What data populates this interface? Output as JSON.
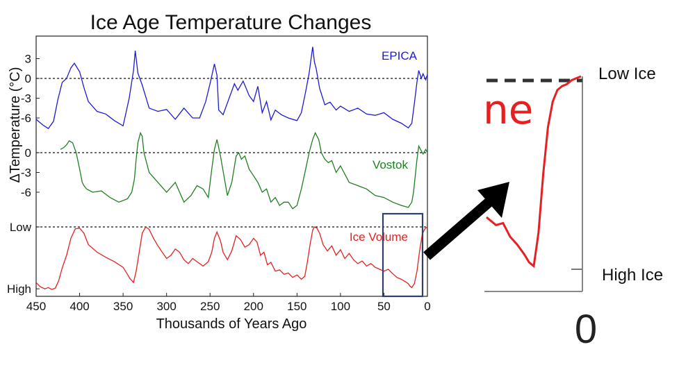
{
  "chart_data": [
    {
      "type": "line",
      "title": "Ice Age Temperature Changes",
      "xlabel": "Thousands of Years Ago",
      "ylabel": "ΔTemperature (°C)",
      "xlim": [
        450,
        0
      ],
      "x_ticks": [
        "450",
        "400",
        "350",
        "300",
        "250",
        "200",
        "150",
        "100",
        "50",
        "0"
      ],
      "grid": false,
      "series": [
        {
          "name": "EPICA",
          "color": "#1a1ad6",
          "y_ticks": [
            "3",
            "0",
            "-3",
            "-6"
          ],
          "ylim": [
            -8,
            5
          ],
          "x": [
            450,
            443,
            436,
            430,
            425,
            420,
            415,
            410,
            406,
            400,
            395,
            390,
            380,
            370,
            360,
            350,
            343,
            338,
            336,
            333,
            328,
            320,
            310,
            300,
            290,
            280,
            270,
            262,
            255,
            250,
            245,
            242,
            240,
            235,
            228,
            222,
            218,
            212,
            205,
            200,
            195,
            190,
            185,
            180,
            175,
            168,
            160,
            150,
            145,
            140,
            136,
            132,
            130,
            128,
            124,
            118,
            112,
            105,
            100,
            90,
            80,
            70,
            60,
            50,
            40,
            30,
            22,
            18,
            15,
            12,
            10,
            7,
            5,
            2,
            0
          ],
          "values": [
            -6.2,
            -7.0,
            -7.6,
            -6.5,
            -3.2,
            -0.6,
            0.0,
            1.6,
            2.3,
            1.0,
            -1.4,
            -3.5,
            -5.0,
            -5.4,
            -6.4,
            -7.2,
            -3.0,
            1.2,
            4.2,
            0.8,
            -1.0,
            -4.5,
            -5.0,
            -4.7,
            -6.2,
            -4.5,
            -6.0,
            -6.0,
            -3.5,
            -0.8,
            2.2,
            0.5,
            -4.8,
            -5.5,
            -3.0,
            -0.8,
            -1.8,
            -0.4,
            -2.6,
            -3.5,
            -1.2,
            -5.2,
            -3.5,
            -6.3,
            -4.8,
            -5.5,
            -6.0,
            -6.4,
            -5.2,
            -2.0,
            0.8,
            4.8,
            2.5,
            1.5,
            -1.5,
            -4.0,
            -3.6,
            -4.8,
            -4.2,
            -5.0,
            -4.5,
            -5.4,
            -5.6,
            -5.2,
            -6.2,
            -6.8,
            -7.5,
            -6.8,
            -3.8,
            -0.5,
            1.2,
            0.0,
            0.7,
            -0.2,
            0.6
          ]
        },
        {
          "name": "Vostok",
          "color": "#1f7f1f",
          "y_ticks": [
            "0",
            "-3",
            "-6"
          ],
          "ylim": [
            -9,
            3
          ],
          "x": [
            422,
            418,
            415,
            412,
            408,
            404,
            400,
            397,
            395,
            392,
            385,
            375,
            365,
            355,
            345,
            340,
            337,
            335,
            333,
            330,
            328,
            326,
            323,
            320,
            310,
            300,
            290,
            280,
            272,
            265,
            258,
            252,
            248,
            245,
            242,
            238,
            234,
            230,
            225,
            220,
            217,
            214,
            210,
            205,
            200,
            195,
            190,
            185,
            180,
            175,
            170,
            165,
            160,
            155,
            150,
            145,
            140,
            136,
            132,
            129,
            127,
            125,
            122,
            118,
            114,
            110,
            105,
            100,
            90,
            80,
            70,
            60,
            50,
            40,
            30,
            22,
            18,
            16,
            14,
            12,
            10,
            8,
            5,
            2,
            0
          ],
          "values": [
            0.5,
            0.8,
            1.2,
            1.8,
            1.5,
            0.0,
            -2.5,
            -4.5,
            -5.0,
            -5.5,
            -6.0,
            -5.8,
            -6.8,
            -7.5,
            -7.0,
            -6.0,
            -4.0,
            -1.0,
            1.5,
            3.0,
            2.5,
            0.0,
            -1.5,
            -3.0,
            -4.5,
            -6.0,
            -4.5,
            -7.5,
            -6.5,
            -5.0,
            -5.5,
            -6.8,
            -2.5,
            0.5,
            2.0,
            -0.5,
            -3.5,
            -6.5,
            -4.5,
            -0.5,
            0.0,
            -1.0,
            -0.5,
            -2.5,
            -3.5,
            -4.5,
            -6.0,
            -5.5,
            -7.5,
            -6.8,
            -8.0,
            -7.5,
            -7.5,
            -8.5,
            -8.0,
            -5.5,
            -2.5,
            0.0,
            2.0,
            3.0,
            2.5,
            2.0,
            0.0,
            -1.0,
            -1.5,
            -1.2,
            -3.0,
            -2.0,
            -4.5,
            -5.0,
            -5.5,
            -6.5,
            -6.8,
            -7.5,
            -8.0,
            -8.3,
            -7.5,
            -6.0,
            -3.5,
            -1.0,
            1.0,
            0.5,
            -0.2,
            0.5,
            0.0
          ]
        },
        {
          "name": "Ice Volume",
          "color": "#e62020",
          "y_ticks": [
            "Low",
            "High"
          ],
          "ylim": [
            0,
            1
          ],
          "x": [
            450,
            445,
            440,
            436,
            432,
            428,
            424,
            420,
            415,
            410,
            405,
            400,
            395,
            390,
            380,
            370,
            360,
            350,
            345,
            342,
            338,
            335,
            332,
            328,
            324,
            320,
            315,
            310,
            305,
            300,
            295,
            290,
            285,
            280,
            275,
            270,
            265,
            258,
            252,
            248,
            245,
            242,
            238,
            235,
            230,
            225,
            220,
            215,
            210,
            205,
            200,
            196,
            192,
            188,
            184,
            180,
            175,
            170,
            165,
            160,
            155,
            150,
            145,
            141,
            138,
            135,
            132,
            130,
            127,
            124,
            120,
            115,
            110,
            105,
            100,
            95,
            90,
            85,
            80,
            75,
            70,
            65,
            60,
            55,
            50,
            45,
            40,
            35,
            30,
            25,
            22,
            20,
            18,
            15,
            12,
            9,
            6,
            3,
            0
          ],
          "values": [
            0.12,
            0.05,
            0.02,
            0.04,
            0.01,
            0.03,
            0.15,
            0.35,
            0.55,
            0.82,
            0.97,
            0.98,
            0.9,
            0.72,
            0.6,
            0.52,
            0.45,
            0.36,
            0.25,
            0.18,
            0.12,
            0.3,
            0.55,
            0.9,
            1.0,
            0.96,
            0.82,
            0.7,
            0.6,
            0.5,
            0.55,
            0.65,
            0.6,
            0.48,
            0.42,
            0.5,
            0.45,
            0.38,
            0.45,
            0.6,
            0.82,
            0.92,
            0.78,
            0.6,
            0.48,
            0.62,
            0.86,
            0.8,
            0.68,
            0.72,
            0.82,
            0.76,
            0.55,
            0.6,
            0.4,
            0.44,
            0.3,
            0.32,
            0.25,
            0.27,
            0.2,
            0.24,
            0.17,
            0.22,
            0.45,
            0.72,
            0.95,
            1.0,
            0.98,
            0.9,
            0.72,
            0.62,
            0.7,
            0.55,
            0.64,
            0.5,
            0.58,
            0.48,
            0.42,
            0.46,
            0.38,
            0.42,
            0.36,
            0.33,
            0.3,
            0.33,
            0.26,
            0.2,
            0.17,
            0.13,
            0.1,
            0.06,
            0.04,
            0.1,
            0.3,
            0.62,
            0.88,
            0.97,
            1.0
          ]
        }
      ]
    },
    {
      "type": "line",
      "x_ticks": [
        "0"
      ],
      "y_ticks": [
        "Low Ice",
        "High Ice"
      ],
      "xlim": [
        40,
        0
      ],
      "ylim": [
        0,
        1
      ],
      "series": [
        {
          "name": "Ice Volume",
          "color": "#e62020",
          "x": [
            40,
            36,
            33,
            30,
            27,
            24,
            22,
            20,
            18,
            16,
            14,
            12,
            10,
            8,
            6,
            4,
            2,
            0
          ],
          "values": [
            0.28,
            0.24,
            0.25,
            0.18,
            0.14,
            0.09,
            0.05,
            0.03,
            0.2,
            0.5,
            0.74,
            0.87,
            0.93,
            0.95,
            0.96,
            0.98,
            0.99,
            1.0
          ]
        }
      ]
    }
  ],
  "inset_label_fragment": "ne"
}
